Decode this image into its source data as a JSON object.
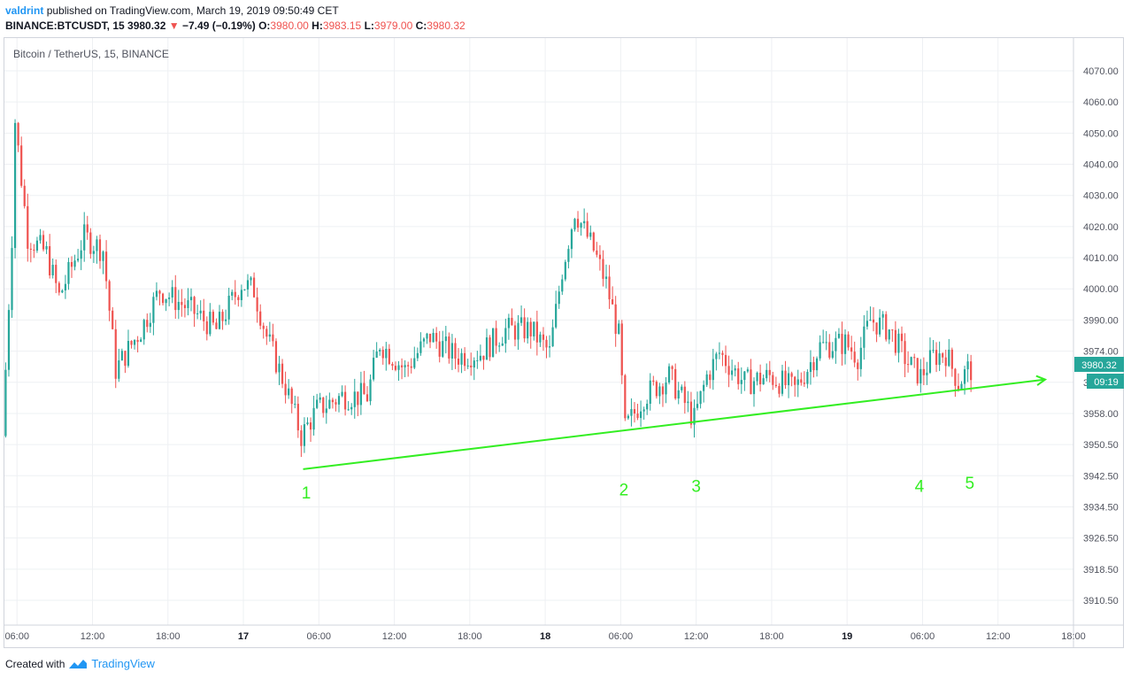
{
  "header": {
    "user": "valdrint",
    "published": "published on TradingView.com, March 19, 2019 09:50:49 CET",
    "symbol": "BINANCE:BTCUSDT, 15",
    "last": "3980.32",
    "change": "−7.49 (−0.19%)",
    "o_label": "O:",
    "o_val": "3980.00",
    "h_label": "H:",
    "h_val": "3983.15",
    "l_label": "L:",
    "l_val": "3979.00",
    "c_label": "C:",
    "c_val": "3980.32"
  },
  "footer": {
    "created": "Created with",
    "brand": "TradingView"
  },
  "colors": {
    "up": "#26a69a",
    "down": "#ef5350",
    "trend": "#33ee22",
    "grid": "#eef0f3",
    "badge": "#26a69a"
  },
  "chart_data": {
    "type": "candlestick",
    "title": "Bitcoin / TetherUS, 15, BINANCE",
    "y_ticks": [
      "4070.00",
      "4060.00",
      "4050.00",
      "4040.00",
      "4030.00",
      "4020.00",
      "4010.00",
      "4000.00",
      "3990.00",
      "3974.00",
      "3966.00",
      "3958.00",
      "3950.50",
      "3942.50",
      "3934.50",
      "3926.50",
      "3918.50",
      "3910.50"
    ],
    "x_ticks": [
      "06:00",
      "12:00",
      "18:00",
      "17",
      "06:00",
      "12:00",
      "18:00",
      "18",
      "06:00",
      "12:00",
      "18:00",
      "19",
      "06:00",
      "12:00",
      "18:00"
    ],
    "x_range": [
      "16 Mar 2019 05:00",
      "19 Mar 2019 18:00"
    ],
    "last_price_label": "3980.32",
    "countdown_label": "09:19",
    "trendline": {
      "start": [
        "17 Mar 2019 04:45",
        3950
      ],
      "end": [
        "19 Mar 2019 15:45",
        3977
      ]
    },
    "annotations": [
      {
        "text": "1",
        "time": "17 Mar 2019 05:00",
        "price": 3943
      },
      {
        "text": "2",
        "time": "18 Mar 2019 06:15",
        "price": 3944
      },
      {
        "text": "3",
        "time": "18 Mar 2019 12:00",
        "price": 3945
      },
      {
        "text": "4",
        "time": "19 Mar 2019 05:45",
        "price": 3945
      },
      {
        "text": "5",
        "time": "19 Mar 2019 09:45",
        "price": 3946
      }
    ],
    "key_points": [
      {
        "time": "16 Mar 2019 05:00",
        "price": 3960
      },
      {
        "time": "16 Mar 2019 05:45",
        "price": 4020
      },
      {
        "time": "16 Mar 2019 06:00",
        "price": 4055
      },
      {
        "time": "16 Mar 2019 07:00",
        "price": 4020
      },
      {
        "time": "16 Mar 2019 08:30",
        "price": 4015
      },
      {
        "time": "16 Mar 2019 09:30",
        "price": 4002
      },
      {
        "time": "16 Mar 2019 11:30",
        "price": 4020
      },
      {
        "time": "16 Mar 2019 13:00",
        "price": 4016
      },
      {
        "time": "16 Mar 2019 14:00",
        "price": 3980
      },
      {
        "time": "16 Mar 2019 16:00",
        "price": 3992
      },
      {
        "time": "16 Mar 2019 17:30",
        "price": 4004
      },
      {
        "time": "16 Mar 2019 20:00",
        "price": 3998
      },
      {
        "time": "16 Mar 2019 22:00",
        "price": 3992
      },
      {
        "time": "17 Mar 2019 00:00",
        "price": 4006
      },
      {
        "time": "17 Mar 2019 01:00",
        "price": 4004
      },
      {
        "time": "17 Mar 2019 02:00",
        "price": 3990
      },
      {
        "time": "17 Mar 2019 03:30",
        "price": 3975
      },
      {
        "time": "17 Mar 2019 04:45",
        "price": 3960
      },
      {
        "time": "17 Mar 2019 06:00",
        "price": 3968
      },
      {
        "time": "17 Mar 2019 08:00",
        "price": 3972
      },
      {
        "time": "17 Mar 2019 10:00",
        "price": 3972
      },
      {
        "time": "17 Mar 2019 11:00",
        "price": 3988
      },
      {
        "time": "17 Mar 2019 13:00",
        "price": 3980
      },
      {
        "time": "17 Mar 2019 15:00",
        "price": 3990
      },
      {
        "time": "17 Mar 2019 17:00",
        "price": 3984
      },
      {
        "time": "17 Mar 2019 19:00",
        "price": 3985
      },
      {
        "time": "17 Mar 2019 21:00",
        "price": 3992
      },
      {
        "time": "17 Mar 2019 23:00",
        "price": 3992
      },
      {
        "time": "18 Mar 2019 00:30",
        "price": 3985
      },
      {
        "time": "18 Mar 2019 01:30",
        "price": 4010
      },
      {
        "time": "18 Mar 2019 02:30",
        "price": 4028
      },
      {
        "time": "18 Mar 2019 04:00",
        "price": 4016
      },
      {
        "time": "18 Mar 2019 05:00",
        "price": 4006
      },
      {
        "time": "18 Mar 2019 06:00",
        "price": 3990
      },
      {
        "time": "18 Mar 2019 06:30",
        "price": 3962
      },
      {
        "time": "18 Mar 2019 08:00",
        "price": 3972
      },
      {
        "time": "18 Mar 2019 10:00",
        "price": 3978
      },
      {
        "time": "18 Mar 2019 12:00",
        "price": 3965
      },
      {
        "time": "18 Mar 2019 13:00",
        "price": 3978
      },
      {
        "time": "18 Mar 2019 14:00",
        "price": 3985
      },
      {
        "time": "18 Mar 2019 16:00",
        "price": 3976
      },
      {
        "time": "18 Mar 2019 18:00",
        "price": 3978
      },
      {
        "time": "18 Mar 2019 20:00",
        "price": 3974
      },
      {
        "time": "18 Mar 2019 22:00",
        "price": 3987
      },
      {
        "time": "19 Mar 2019 00:00",
        "price": 3988
      },
      {
        "time": "19 Mar 2019 01:00",
        "price": 3984
      },
      {
        "time": "19 Mar 2019 02:00",
        "price": 3995
      },
      {
        "time": "19 Mar 2019 03:30",
        "price": 3992
      },
      {
        "time": "19 Mar 2019 05:00",
        "price": 3982
      },
      {
        "time": "19 Mar 2019 06:00",
        "price": 3978
      },
      {
        "time": "19 Mar 2019 07:00",
        "price": 3984
      },
      {
        "time": "19 Mar 2019 08:00",
        "price": 3985
      },
      {
        "time": "19 Mar 2019 09:00",
        "price": 3976
      },
      {
        "time": "19 Mar 2019 09:45",
        "price": 3980
      }
    ]
  }
}
